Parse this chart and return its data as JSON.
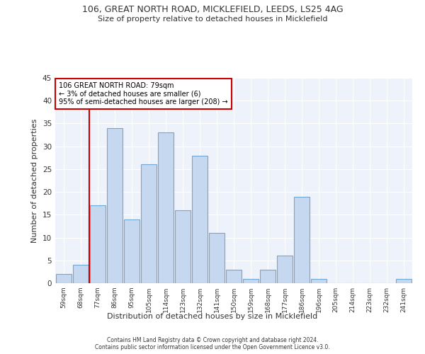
{
  "title1": "106, GREAT NORTH ROAD, MICKLEFIELD, LEEDS, LS25 4AG",
  "title2": "Size of property relative to detached houses in Micklefield",
  "xlabel": "Distribution of detached houses by size in Micklefield",
  "ylabel": "Number of detached properties",
  "categories": [
    "59sqm",
    "68sqm",
    "77sqm",
    "86sqm",
    "95sqm",
    "105sqm",
    "114sqm",
    "123sqm",
    "132sqm",
    "141sqm",
    "150sqm",
    "159sqm",
    "168sqm",
    "177sqm",
    "186sqm",
    "196sqm",
    "205sqm",
    "214sqm",
    "223sqm",
    "232sqm",
    "241sqm"
  ],
  "values": [
    2,
    4,
    17,
    34,
    14,
    26,
    33,
    16,
    28,
    11,
    3,
    1,
    3,
    6,
    19,
    1,
    0,
    0,
    0,
    0,
    1
  ],
  "bar_color": "#c5d8f0",
  "bar_edge_color": "#6fa8d6",
  "annotation_line1": "106 GREAT NORTH ROAD: 79sqm",
  "annotation_line2": "← 3% of detached houses are smaller (6)",
  "annotation_line3": "95% of semi-detached houses are larger (208) →",
  "vline_color": "#cc0000",
  "vline_x_index": 2,
  "ylim": [
    0,
    45
  ],
  "yticks": [
    0,
    5,
    10,
    15,
    20,
    25,
    30,
    35,
    40,
    45
  ],
  "footer": "Contains HM Land Registry data © Crown copyright and database right 2024.\nContains public sector information licensed under the Open Government Licence v3.0.",
  "plot_bg_color": "#eef2fa"
}
